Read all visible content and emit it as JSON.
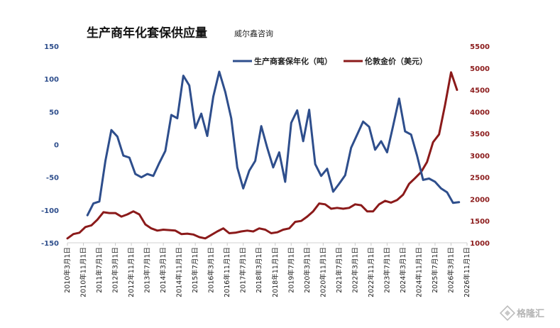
{
  "chart_data": {
    "type": "line",
    "title": "生产商年化套保供应量",
    "subtitle": "威尔鑫咨询",
    "legend_position": "top-right",
    "grid": false,
    "x_axis": {
      "tick_labels": [
        "2010年3月1日",
        "2010年11月1日",
        "2011年7月1日",
        "2012年3月1日",
        "2012年11月1日",
        "2013年7月1日",
        "2014年3月1日",
        "2014年11月1日",
        "2015年7月1日",
        "2016年3月1日",
        "2016年11月1日",
        "2017年7月1日",
        "2018年3月1日",
        "2018年11月1日",
        "2019年7月1日",
        "2020年3月1日",
        "2020年11月1日",
        "2021年7月1日",
        "2022年3月1日",
        "2022年11月1日",
        "2023年7月1日",
        "2024年3月1日",
        "2024年11月1日",
        "2025年7月1日",
        "2026年3月1日",
        "2026年11月1日"
      ],
      "range": [
        "2010-03",
        "2026-11"
      ]
    },
    "y_left": {
      "ylim": [
        -150,
        150
      ],
      "ticks": [
        150,
        100,
        50,
        0,
        -50,
        -100,
        -150
      ]
    },
    "y_right": {
      "ylim": [
        1000,
        5500
      ],
      "ticks": [
        5500,
        5000,
        4500,
        4000,
        3500,
        3000,
        2500,
        2000,
        1500,
        1000
      ]
    },
    "series": [
      {
        "name": "生产商套保年化（吨）",
        "axis": "left",
        "color": "#2e4e8c",
        "points": [
          [
            "2011-01",
            -108
          ],
          [
            "2011-04",
            -90
          ],
          [
            "2011-07",
            -87
          ],
          [
            "2011-10",
            -25
          ],
          [
            "2012-01",
            22
          ],
          [
            "2012-04",
            12
          ],
          [
            "2012-07",
            -17
          ],
          [
            "2012-10",
            -20
          ],
          [
            "2013-01",
            -45
          ],
          [
            "2013-04",
            -50
          ],
          [
            "2013-07",
            -45
          ],
          [
            "2013-10",
            -48
          ],
          [
            "2014-01",
            -28
          ],
          [
            "2014-04",
            -10
          ],
          [
            "2014-07",
            45
          ],
          [
            "2014-10",
            40
          ],
          [
            "2015-01",
            105
          ],
          [
            "2015-04",
            90
          ],
          [
            "2015-07",
            25
          ],
          [
            "2015-10",
            47
          ],
          [
            "2016-01",
            13
          ],
          [
            "2016-04",
            73
          ],
          [
            "2016-07",
            111
          ],
          [
            "2016-10",
            80
          ],
          [
            "2017-01",
            40
          ],
          [
            "2017-04",
            -35
          ],
          [
            "2017-07",
            -67
          ],
          [
            "2017-10",
            -40
          ],
          [
            "2018-01",
            -25
          ],
          [
            "2018-04",
            28
          ],
          [
            "2018-07",
            -5
          ],
          [
            "2018-10",
            -35
          ],
          [
            "2019-01",
            -12
          ],
          [
            "2019-04",
            -57
          ],
          [
            "2019-07",
            33
          ],
          [
            "2019-10",
            52
          ],
          [
            "2020-01",
            5
          ],
          [
            "2020-04",
            53
          ],
          [
            "2020-07",
            -30
          ],
          [
            "2020-10",
            -48
          ],
          [
            "2021-01",
            -37
          ],
          [
            "2021-04",
            -72
          ],
          [
            "2021-07",
            -60
          ],
          [
            "2021-10",
            -47
          ],
          [
            "2022-01",
            -5
          ],
          [
            "2022-04",
            15
          ],
          [
            "2022-07",
            35
          ],
          [
            "2022-10",
            27
          ],
          [
            "2023-01",
            -8
          ],
          [
            "2023-04",
            5
          ],
          [
            "2023-07",
            -12
          ],
          [
            "2023-10",
            28
          ],
          [
            "2024-01",
            70
          ],
          [
            "2024-04",
            20
          ],
          [
            "2024-07",
            15
          ],
          [
            "2024-10",
            -17
          ],
          [
            "2025-01",
            -54
          ],
          [
            "2025-04",
            -52
          ],
          [
            "2025-07",
            -57
          ],
          [
            "2025-10",
            -67
          ],
          [
            "2026-01",
            -73
          ],
          [
            "2026-04",
            -89
          ],
          [
            "2026-07",
            -88
          ]
        ]
      },
      {
        "name": "伦敦金价（美元）",
        "axis": "right",
        "color": "#8b1a1a",
        "points": [
          [
            "2010-03",
            1100
          ],
          [
            "2010-06",
            1200
          ],
          [
            "2010-09",
            1230
          ],
          [
            "2010-12",
            1360
          ],
          [
            "2011-03",
            1400
          ],
          [
            "2011-06",
            1530
          ],
          [
            "2011-09",
            1700
          ],
          [
            "2011-12",
            1680
          ],
          [
            "2012-03",
            1680
          ],
          [
            "2012-06",
            1600
          ],
          [
            "2012-09",
            1650
          ],
          [
            "2012-12",
            1720
          ],
          [
            "2013-03",
            1650
          ],
          [
            "2013-06",
            1420
          ],
          [
            "2013-09",
            1330
          ],
          [
            "2013-12",
            1280
          ],
          [
            "2014-03",
            1300
          ],
          [
            "2014-06",
            1290
          ],
          [
            "2014-09",
            1280
          ],
          [
            "2014-12",
            1200
          ],
          [
            "2015-03",
            1210
          ],
          [
            "2015-06",
            1190
          ],
          [
            "2015-09",
            1130
          ],
          [
            "2015-12",
            1100
          ],
          [
            "2016-03",
            1180
          ],
          [
            "2016-06",
            1260
          ],
          [
            "2016-09",
            1330
          ],
          [
            "2016-12",
            1220
          ],
          [
            "2017-03",
            1230
          ],
          [
            "2017-06",
            1260
          ],
          [
            "2017-09",
            1280
          ],
          [
            "2017-12",
            1260
          ],
          [
            "2018-03",
            1330
          ],
          [
            "2018-06",
            1300
          ],
          [
            "2018-09",
            1220
          ],
          [
            "2018-12",
            1240
          ],
          [
            "2019-03",
            1300
          ],
          [
            "2019-06",
            1330
          ],
          [
            "2019-09",
            1480
          ],
          [
            "2019-12",
            1500
          ],
          [
            "2020-03",
            1600
          ],
          [
            "2020-06",
            1720
          ],
          [
            "2020-09",
            1900
          ],
          [
            "2020-12",
            1880
          ],
          [
            "2021-03",
            1780
          ],
          [
            "2021-06",
            1800
          ],
          [
            "2021-09",
            1780
          ],
          [
            "2021-12",
            1800
          ],
          [
            "2022-03",
            1880
          ],
          [
            "2022-06",
            1860
          ],
          [
            "2022-09",
            1720
          ],
          [
            "2022-12",
            1720
          ],
          [
            "2023-03",
            1880
          ],
          [
            "2023-06",
            1960
          ],
          [
            "2023-09",
            1920
          ],
          [
            "2023-12",
            1980
          ],
          [
            "2024-03",
            2100
          ],
          [
            "2024-06",
            2350
          ],
          [
            "2024-09",
            2480
          ],
          [
            "2024-12",
            2620
          ],
          [
            "2025-03",
            2850
          ],
          [
            "2025-06",
            3300
          ],
          [
            "2025-09",
            3480
          ],
          [
            "2025-12",
            4150
          ],
          [
            "2026-03",
            4900
          ],
          [
            "2026-06",
            4500
          ]
        ]
      }
    ]
  },
  "watermark": {
    "text": "格隆汇",
    "icon": "diamond-logo-icon"
  }
}
